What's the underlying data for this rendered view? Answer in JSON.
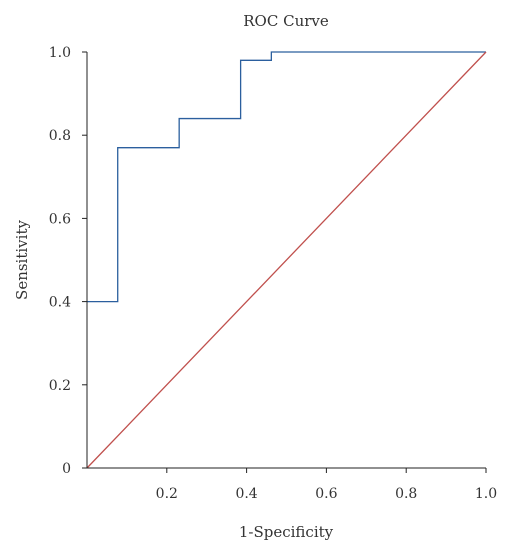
{
  "chart_data": {
    "type": "line",
    "title": "ROC Curve",
    "xlabel": "1-Specificity",
    "ylabel": "Sensitivity",
    "xlim": [
      0,
      1
    ],
    "ylim": [
      0,
      1
    ],
    "x_ticks": [
      {
        "value": 0.2,
        "label": "0.2"
      },
      {
        "value": 0.4,
        "label": "0.4"
      },
      {
        "value": 0.6,
        "label": "0.6"
      },
      {
        "value": 0.8,
        "label": "0.8"
      },
      {
        "value": 1.0,
        "label": "1.0"
      }
    ],
    "y_ticks": [
      {
        "value": 0,
        "label": "0"
      },
      {
        "value": 0.2,
        "label": "0.2"
      },
      {
        "value": 0.4,
        "label": "0.4"
      },
      {
        "value": 0.6,
        "label": "0.6"
      },
      {
        "value": 0.8,
        "label": "0.8"
      },
      {
        "value": 1.0,
        "label": "1.0"
      }
    ],
    "grid": false,
    "legend": "none",
    "series": [
      {
        "role": "roc",
        "color": "#2b5f9e",
        "x": [
          0,
          0.077,
          0.077,
          0.231,
          0.231,
          0.385,
          0.385,
          0.462,
          0.462,
          1.0
        ],
        "y": [
          0.4,
          0.4,
          0.77,
          0.77,
          0.84,
          0.84,
          0.98,
          0.98,
          1.0,
          1.0
        ]
      },
      {
        "role": "reference",
        "color": "#c0504d",
        "x": [
          0,
          1
        ],
        "y": [
          0,
          1
        ]
      }
    ]
  }
}
